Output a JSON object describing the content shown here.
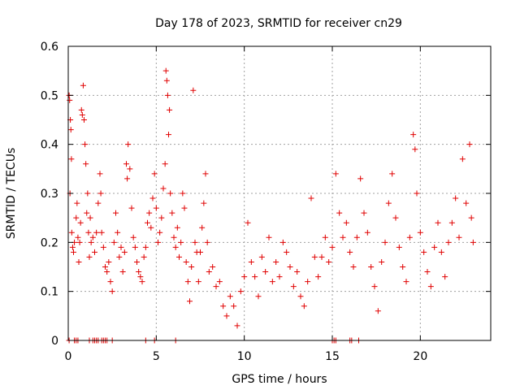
{
  "chart_data": {
    "type": "scatter",
    "title": "Day 178 of 2023, SRMTID for receiver cn29",
    "xlabel": "GPS time / hours",
    "ylabel": "SRMTID / TECUs",
    "xlim": [
      0,
      24
    ],
    "ylim": [
      0,
      0.6
    ],
    "x_ticks": [
      0,
      5,
      10,
      15,
      20
    ],
    "y_ticks": [
      0,
      0.1,
      0.2,
      0.3,
      0.4,
      0.5,
      0.6
    ],
    "x_tick_labels": [
      "0",
      "5",
      "10",
      "15",
      "20"
    ],
    "y_tick_labels": [
      "0",
      "0.1",
      "0.2",
      "0.3",
      "0.4",
      "0.5",
      "0.6"
    ],
    "grid": true,
    "marker": "plus",
    "series_color": "#e00000",
    "series": [
      {
        "name": "SRMTID",
        "points": [
          [
            0.05,
            0.5
          ],
          [
            0.08,
            0.49
          ],
          [
            0.12,
            0.45
          ],
          [
            0.15,
            0.43
          ],
          [
            0.18,
            0.37
          ],
          [
            0.1,
            0.3
          ],
          [
            0.2,
            0.22
          ],
          [
            0.25,
            0.19
          ],
          [
            0.3,
            0.18
          ],
          [
            0.35,
            0.2
          ],
          [
            0.45,
            0.25
          ],
          [
            0.5,
            0.28
          ],
          [
            0.55,
            0.21
          ],
          [
            0.6,
            0.16
          ],
          [
            0.65,
            0.2
          ],
          [
            0.7,
            0.24
          ],
          [
            0.75,
            0.47
          ],
          [
            0.8,
            0.46
          ],
          [
            0.85,
            0.52
          ],
          [
            0.9,
            0.45
          ],
          [
            0.95,
            0.4
          ],
          [
            1.0,
            0.36
          ],
          [
            1.05,
            0.26
          ],
          [
            1.1,
            0.3
          ],
          [
            1.15,
            0.22
          ],
          [
            1.2,
            0.17
          ],
          [
            1.25,
            0.25
          ],
          [
            1.3,
            0.2
          ],
          [
            1.4,
            0.21
          ],
          [
            1.5,
            0.18
          ],
          [
            1.6,
            0.22
          ],
          [
            1.7,
            0.28
          ],
          [
            1.8,
            0.34
          ],
          [
            1.85,
            0.3
          ],
          [
            1.9,
            0.22
          ],
          [
            2.0,
            0.19
          ],
          [
            2.1,
            0.15
          ],
          [
            2.2,
            0.14
          ],
          [
            2.3,
            0.16
          ],
          [
            2.4,
            0.12
          ],
          [
            2.5,
            0.1
          ],
          [
            2.6,
            0.2
          ],
          [
            2.7,
            0.26
          ],
          [
            2.8,
            0.22
          ],
          [
            2.9,
            0.17
          ],
          [
            3.0,
            0.19
          ],
          [
            3.1,
            0.14
          ],
          [
            3.2,
            0.18
          ],
          [
            3.3,
            0.36
          ],
          [
            3.35,
            0.33
          ],
          [
            3.4,
            0.4
          ],
          [
            3.5,
            0.35
          ],
          [
            3.6,
            0.27
          ],
          [
            3.7,
            0.21
          ],
          [
            3.8,
            0.19
          ],
          [
            3.9,
            0.16
          ],
          [
            4.0,
            0.14
          ],
          [
            4.1,
            0.13
          ],
          [
            4.2,
            0.12
          ],
          [
            4.3,
            0.17
          ],
          [
            4.4,
            0.19
          ],
          [
            4.5,
            0.24
          ],
          [
            4.6,
            0.26
          ],
          [
            4.7,
            0.23
          ],
          [
            4.8,
            0.29
          ],
          [
            4.9,
            0.34
          ],
          [
            5.0,
            0.27
          ],
          [
            5.1,
            0.2
          ],
          [
            5.2,
            0.22
          ],
          [
            5.3,
            0.25
          ],
          [
            5.4,
            0.31
          ],
          [
            5.5,
            0.36
          ],
          [
            5.55,
            0.55
          ],
          [
            5.6,
            0.53
          ],
          [
            5.65,
            0.5
          ],
          [
            5.7,
            0.42
          ],
          [
            5.75,
            0.47
          ],
          [
            5.8,
            0.3
          ],
          [
            5.9,
            0.26
          ],
          [
            6.0,
            0.21
          ],
          [
            6.1,
            0.19
          ],
          [
            6.2,
            0.23
          ],
          [
            6.3,
            0.17
          ],
          [
            6.4,
            0.2
          ],
          [
            6.5,
            0.3
          ],
          [
            6.6,
            0.27
          ],
          [
            6.7,
            0.16
          ],
          [
            6.8,
            0.12
          ],
          [
            6.9,
            0.08
          ],
          [
            7.0,
            0.15
          ],
          [
            7.1,
            0.51
          ],
          [
            7.2,
            0.2
          ],
          [
            7.3,
            0.18
          ],
          [
            7.4,
            0.12
          ],
          [
            7.5,
            0.18
          ],
          [
            7.6,
            0.23
          ],
          [
            7.7,
            0.28
          ],
          [
            7.8,
            0.34
          ],
          [
            7.9,
            0.2
          ],
          [
            8.0,
            0.14
          ],
          [
            8.2,
            0.15
          ],
          [
            8.4,
            0.11
          ],
          [
            8.6,
            0.12
          ],
          [
            8.8,
            0.07
          ],
          [
            9.0,
            0.05
          ],
          [
            9.2,
            0.09
          ],
          [
            9.4,
            0.07
          ],
          [
            9.6,
            0.03
          ],
          [
            9.8,
            0.1
          ],
          [
            10.0,
            0.13
          ],
          [
            10.2,
            0.24
          ],
          [
            10.4,
            0.16
          ],
          [
            10.6,
            0.13
          ],
          [
            10.8,
            0.09
          ],
          [
            11.0,
            0.17
          ],
          [
            11.2,
            0.14
          ],
          [
            11.4,
            0.21
          ],
          [
            11.6,
            0.12
          ],
          [
            11.8,
            0.16
          ],
          [
            12.0,
            0.13
          ],
          [
            12.2,
            0.2
          ],
          [
            12.4,
            0.18
          ],
          [
            12.6,
            0.15
          ],
          [
            12.8,
            0.11
          ],
          [
            13.0,
            0.14
          ],
          [
            13.2,
            0.09
          ],
          [
            13.4,
            0.07
          ],
          [
            13.6,
            0.12
          ],
          [
            13.8,
            0.29
          ],
          [
            14.0,
            0.17
          ],
          [
            14.2,
            0.13
          ],
          [
            14.4,
            0.17
          ],
          [
            14.6,
            0.21
          ],
          [
            14.8,
            0.16
          ],
          [
            15.0,
            0.19
          ],
          [
            15.2,
            0.34
          ],
          [
            15.4,
            0.26
          ],
          [
            15.6,
            0.21
          ],
          [
            15.8,
            0.24
          ],
          [
            16.0,
            0.18
          ],
          [
            16.2,
            0.15
          ],
          [
            16.4,
            0.21
          ],
          [
            16.6,
            0.33
          ],
          [
            16.8,
            0.26
          ],
          [
            17.0,
            0.22
          ],
          [
            17.2,
            0.15
          ],
          [
            17.4,
            0.11
          ],
          [
            17.6,
            0.06
          ],
          [
            17.8,
            0.16
          ],
          [
            18.0,
            0.2
          ],
          [
            18.2,
            0.28
          ],
          [
            18.4,
            0.34
          ],
          [
            18.6,
            0.25
          ],
          [
            18.8,
            0.19
          ],
          [
            19.0,
            0.15
          ],
          [
            19.2,
            0.12
          ],
          [
            19.4,
            0.21
          ],
          [
            19.6,
            0.42
          ],
          [
            19.7,
            0.39
          ],
          [
            19.8,
            0.3
          ],
          [
            20.0,
            0.22
          ],
          [
            20.2,
            0.18
          ],
          [
            20.4,
            0.14
          ],
          [
            20.6,
            0.11
          ],
          [
            20.8,
            0.19
          ],
          [
            21.0,
            0.24
          ],
          [
            21.2,
            0.18
          ],
          [
            21.4,
            0.13
          ],
          [
            21.6,
            0.2
          ],
          [
            21.8,
            0.24
          ],
          [
            22.0,
            0.29
          ],
          [
            22.2,
            0.21
          ],
          [
            22.4,
            0.37
          ],
          [
            22.6,
            0.28
          ],
          [
            22.8,
            0.4
          ],
          [
            22.9,
            0.25
          ],
          [
            23.0,
            0.2
          ]
        ],
        "zero_points": [
          0.05,
          0.35,
          0.45,
          0.55,
          1.2,
          1.4,
          1.5,
          1.6,
          1.7,
          1.9,
          2.0,
          2.1,
          2.2,
          2.5,
          4.4,
          4.9,
          6.1,
          15.0,
          15.1,
          15.2,
          16.0,
          16.1,
          16.5
        ]
      }
    ]
  }
}
